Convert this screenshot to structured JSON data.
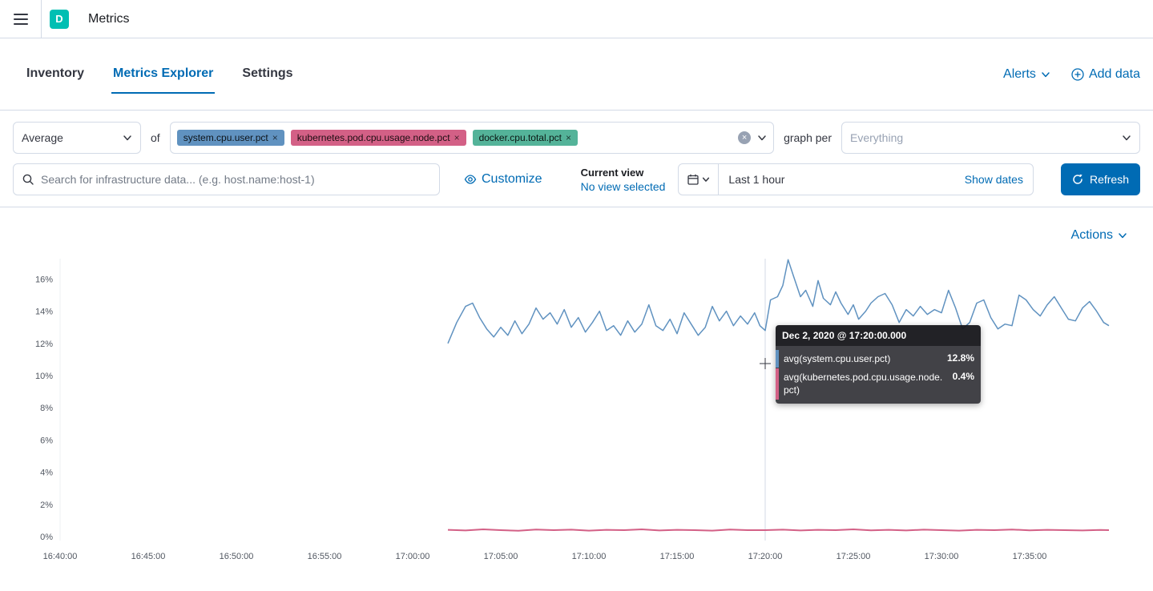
{
  "header": {
    "app_initial": "D",
    "title": "Metrics"
  },
  "nav": {
    "tabs": [
      {
        "label": "Inventory",
        "active": false
      },
      {
        "label": "Metrics Explorer",
        "active": true
      },
      {
        "label": "Settings",
        "active": false
      }
    ],
    "alerts_label": "Alerts",
    "add_data_label": "Add data"
  },
  "toolbar": {
    "aggregation_value": "Average",
    "of_label": "of",
    "metric_pills": [
      {
        "label": "system.cpu.user.pct",
        "color": "#6092C0"
      },
      {
        "label": "kubernetes.pod.cpu.usage.node.pct",
        "color": "#D36086"
      },
      {
        "label": "docker.cpu.total.pct",
        "color": "#54B399"
      }
    ],
    "graph_per_label": "graph per",
    "graph_per_placeholder": "Everything"
  },
  "controls": {
    "search_placeholder": "Search for infrastructure data... (e.g. host.name:host-1)",
    "customize_label": "Customize",
    "current_view_title": "Current view",
    "current_view_value": "No view selected",
    "time_range": "Last 1 hour",
    "show_dates_label": "Show dates",
    "refresh_label": "Refresh"
  },
  "chart_section": {
    "actions_label": "Actions"
  },
  "colors": {
    "accent": "#006BB4",
    "border": "#D3DAE6",
    "app_badge": "#00BFB3",
    "crosshair": "#D3DAE6",
    "axis_text": "#515761"
  },
  "chart_data": {
    "type": "line",
    "title": "",
    "xlabel": "",
    "ylabel": "",
    "ylim": [
      0,
      17.5
    ],
    "x_minutes_range": [
      0,
      60
    ],
    "y_ticks": [
      "0%",
      "2%",
      "4%",
      "6%",
      "8%",
      "10%",
      "12%",
      "14%",
      "16%"
    ],
    "x_ticks": [
      "16:40:00",
      "16:45:00",
      "16:50:00",
      "16:55:00",
      "17:00:00",
      "17:05:00",
      "17:10:00",
      "17:15:00",
      "17:20:00",
      "17:25:00",
      "17:30:00",
      "17:35:00"
    ],
    "legend": "off",
    "grid": "off",
    "series": [
      {
        "name": "avg(system.cpu.user.pct)",
        "color": "#6092C0",
        "points": [
          [
            22,
            12.0
          ],
          [
            22.5,
            13.3
          ],
          [
            23,
            14.3
          ],
          [
            23.4,
            14.5
          ],
          [
            23.8,
            13.6
          ],
          [
            24.2,
            12.9
          ],
          [
            24.6,
            12.4
          ],
          [
            25,
            13.0
          ],
          [
            25.4,
            12.5
          ],
          [
            25.8,
            13.4
          ],
          [
            26.2,
            12.6
          ],
          [
            26.6,
            13.2
          ],
          [
            27,
            14.2
          ],
          [
            27.4,
            13.5
          ],
          [
            27.8,
            13.9
          ],
          [
            28.2,
            13.2
          ],
          [
            28.6,
            14.1
          ],
          [
            29,
            13.0
          ],
          [
            29.4,
            13.6
          ],
          [
            29.8,
            12.7
          ],
          [
            30.2,
            13.3
          ],
          [
            30.6,
            14.0
          ],
          [
            31,
            12.8
          ],
          [
            31.4,
            13.1
          ],
          [
            31.8,
            12.5
          ],
          [
            32.2,
            13.4
          ],
          [
            32.6,
            12.7
          ],
          [
            33,
            13.2
          ],
          [
            33.4,
            14.4
          ],
          [
            33.8,
            13.1
          ],
          [
            34.2,
            12.8
          ],
          [
            34.6,
            13.5
          ],
          [
            35,
            12.6
          ],
          [
            35.4,
            13.9
          ],
          [
            35.8,
            13.2
          ],
          [
            36.2,
            12.5
          ],
          [
            36.6,
            13.0
          ],
          [
            37,
            14.3
          ],
          [
            37.4,
            13.4
          ],
          [
            37.8,
            14.0
          ],
          [
            38.2,
            13.1
          ],
          [
            38.6,
            13.7
          ],
          [
            39,
            13.2
          ],
          [
            39.4,
            13.9
          ],
          [
            39.7,
            13.1
          ],
          [
            40,
            12.8
          ],
          [
            40.3,
            14.7
          ],
          [
            40.7,
            14.9
          ],
          [
            41,
            15.6
          ],
          [
            41.3,
            17.2
          ],
          [
            41.6,
            16.2
          ],
          [
            42,
            14.9
          ],
          [
            42.3,
            15.3
          ],
          [
            42.7,
            14.3
          ],
          [
            43,
            15.9
          ],
          [
            43.3,
            14.8
          ],
          [
            43.7,
            14.4
          ],
          [
            44,
            15.2
          ],
          [
            44.3,
            14.5
          ],
          [
            44.7,
            13.8
          ],
          [
            45,
            14.4
          ],
          [
            45.3,
            13.5
          ],
          [
            45.7,
            14.0
          ],
          [
            46,
            14.5
          ],
          [
            46.4,
            14.9
          ],
          [
            46.8,
            15.1
          ],
          [
            47.2,
            14.4
          ],
          [
            47.6,
            13.3
          ],
          [
            48,
            14.1
          ],
          [
            48.4,
            13.7
          ],
          [
            48.8,
            14.3
          ],
          [
            49.2,
            13.8
          ],
          [
            49.6,
            14.1
          ],
          [
            50,
            13.9
          ],
          [
            50.4,
            15.3
          ],
          [
            50.8,
            14.2
          ],
          [
            51.2,
            12.9
          ],
          [
            51.6,
            13.3
          ],
          [
            52,
            14.5
          ],
          [
            52.4,
            14.7
          ],
          [
            52.8,
            13.6
          ],
          [
            53.2,
            12.9
          ],
          [
            53.6,
            13.2
          ],
          [
            54,
            13.1
          ],
          [
            54.4,
            15.0
          ],
          [
            54.8,
            14.7
          ],
          [
            55.2,
            14.1
          ],
          [
            55.6,
            13.7
          ],
          [
            56,
            14.4
          ],
          [
            56.4,
            14.9
          ],
          [
            56.8,
            14.2
          ],
          [
            57.2,
            13.5
          ],
          [
            57.6,
            13.4
          ],
          [
            58,
            14.2
          ],
          [
            58.4,
            14.6
          ],
          [
            58.8,
            14.0
          ],
          [
            59.2,
            13.3
          ],
          [
            59.5,
            13.1
          ]
        ]
      },
      {
        "name": "avg(kubernetes.pod.cpu.usage.node.pct)",
        "color": "#D36086",
        "points": [
          [
            22,
            0.42
          ],
          [
            23,
            0.38
          ],
          [
            24,
            0.45
          ],
          [
            25,
            0.4
          ],
          [
            26,
            0.36
          ],
          [
            27,
            0.44
          ],
          [
            28,
            0.4
          ],
          [
            29,
            0.43
          ],
          [
            30,
            0.37
          ],
          [
            31,
            0.42
          ],
          [
            32,
            0.4
          ],
          [
            33,
            0.45
          ],
          [
            34,
            0.38
          ],
          [
            35,
            0.42
          ],
          [
            36,
            0.4
          ],
          [
            37,
            0.37
          ],
          [
            38,
            0.44
          ],
          [
            39,
            0.4
          ],
          [
            40,
            0.4
          ],
          [
            41,
            0.43
          ],
          [
            42,
            0.38
          ],
          [
            43,
            0.42
          ],
          [
            44,
            0.4
          ],
          [
            45,
            0.45
          ],
          [
            46,
            0.39
          ],
          [
            47,
            0.42
          ],
          [
            48,
            0.38
          ],
          [
            49,
            0.43
          ],
          [
            50,
            0.4
          ],
          [
            51,
            0.37
          ],
          [
            52,
            0.42
          ],
          [
            53,
            0.4
          ],
          [
            54,
            0.44
          ],
          [
            55,
            0.39
          ],
          [
            56,
            0.42
          ],
          [
            57,
            0.4
          ],
          [
            58,
            0.38
          ],
          [
            59,
            0.41
          ],
          [
            59.5,
            0.4
          ]
        ]
      }
    ],
    "tooltip": {
      "time": "Dec 2, 2020 @ 17:20:00.000",
      "crosshair_minute": 40,
      "rows": [
        {
          "label": "avg(system.cpu.user.pct)",
          "value": "12.8%",
          "color": "#6092C0"
        },
        {
          "label": "avg(kubernetes.pod.cpu.usage.node.pct)",
          "value": "0.4%",
          "color": "#D36086"
        }
      ]
    }
  }
}
